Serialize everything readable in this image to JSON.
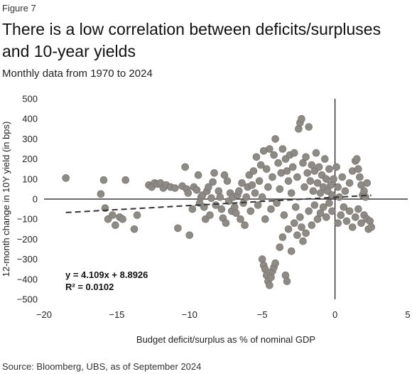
{
  "header": {
    "figure_label": "Figure 7",
    "title": "There is a low correlation between deficits/surpluses and 10-year yields",
    "subtitle": "Monthly data from 1970 to 2024"
  },
  "footer": {
    "source": "Source: Bloomberg, UBS, as of September 2024"
  },
  "colors": {
    "points": "#8e8b86",
    "point_stroke": "#6f6c67",
    "trend": "#333333",
    "axis": "#111111"
  },
  "chart_data": {
    "type": "scatter",
    "title": "There is a low correlation between deficits/surpluses and 10-year yields",
    "subtitle": "Monthly data from 1970 to 2024",
    "xlabel": "Budget deficit/surplus as % of nominal GDP",
    "ylabel": "12-month change in 10Y yield (in bps)",
    "xlim": [
      -20,
      5
    ],
    "ylim": [
      -500,
      500
    ],
    "x_ticks": [
      -20,
      -15,
      -10,
      -5,
      0,
      5
    ],
    "y_ticks": [
      500,
      400,
      300,
      200,
      100,
      0,
      -100,
      -200,
      -300,
      -400,
      -500
    ],
    "x_tick_labels": [
      "−20",
      "−15",
      "−10",
      "−5",
      "0",
      "5"
    ],
    "y_tick_labels": [
      "500",
      "400",
      "300",
      "200",
      "100",
      "0",
      "−100",
      "−200",
      "−300",
      "−400",
      "−500"
    ],
    "grid": false,
    "trendline": {
      "slope": 4.109,
      "intercept": 8.8926,
      "x_range": [
        -18.5,
        2.5
      ],
      "style": "dashed"
    },
    "annotations": {
      "equation": "y = 4.109x + 8.8926",
      "r_squared": "R² = 0.0102"
    },
    "series": [
      {
        "points": [
          [
            -18.5,
            105
          ],
          [
            -16.1,
            25
          ],
          [
            -15.9,
            95
          ],
          [
            -15.8,
            -45
          ],
          [
            -15.6,
            -100
          ],
          [
            -15.3,
            -80
          ],
          [
            -15.1,
            -130
          ],
          [
            -14.8,
            -90
          ],
          [
            -14.6,
            -100
          ],
          [
            -14.4,
            95
          ],
          [
            -13.8,
            -150
          ],
          [
            -13.6,
            -80
          ],
          [
            -12.8,
            70
          ],
          [
            -12.6,
            60
          ],
          [
            -12.4,
            80
          ],
          [
            -12.2,
            75
          ],
          [
            -12.0,
            80
          ],
          [
            -11.8,
            55
          ],
          [
            -11.6,
            70
          ],
          [
            -11.3,
            60
          ],
          [
            -11.0,
            55
          ],
          [
            -10.8,
            -145
          ],
          [
            -10.5,
            65
          ],
          [
            -10.3,
            160
          ],
          [
            -10.2,
            50
          ],
          [
            -10.1,
            30
          ],
          [
            -10.0,
            -180
          ],
          [
            -9.8,
            -50
          ],
          [
            -9.7,
            60
          ],
          [
            -9.5,
            45
          ],
          [
            -9.4,
            120
          ],
          [
            -9.3,
            -20
          ],
          [
            -9.2,
            10
          ],
          [
            -9.1,
            20
          ],
          [
            -9.0,
            -40
          ],
          [
            -8.9,
            -100
          ],
          [
            -8.8,
            40
          ],
          [
            -8.7,
            60
          ],
          [
            -8.6,
            -80
          ],
          [
            -8.5,
            5
          ],
          [
            -8.4,
            85
          ],
          [
            -8.3,
            130
          ],
          [
            -8.2,
            -30
          ],
          [
            -8.0,
            40
          ],
          [
            -7.9,
            10
          ],
          [
            -7.8,
            -50
          ],
          [
            -7.7,
            -95
          ],
          [
            -7.6,
            120
          ],
          [
            -7.5,
            -120
          ],
          [
            -7.4,
            90
          ],
          [
            -7.3,
            -10
          ],
          [
            -7.2,
            30
          ],
          [
            -7.1,
            -60
          ],
          [
            -7.0,
            10
          ],
          [
            -6.9,
            -40
          ],
          [
            -6.8,
            -70
          ],
          [
            -6.7,
            20
          ],
          [
            -6.6,
            40
          ],
          [
            -6.5,
            -100
          ],
          [
            -6.4,
            80
          ],
          [
            -6.3,
            -20
          ],
          [
            -6.2,
            -130
          ],
          [
            -6.1,
            10
          ],
          [
            -6.0,
            60
          ],
          [
            -5.9,
            120
          ],
          [
            -5.8,
            -60
          ],
          [
            -5.7,
            70
          ],
          [
            -5.6,
            140
          ],
          [
            -5.5,
            30
          ],
          [
            -5.4,
            210
          ],
          [
            -5.3,
            -30
          ],
          [
            -5.2,
            90
          ],
          [
            -5.1,
            170
          ],
          [
            -5.0,
            10
          ],
          [
            -4.9,
            240
          ],
          [
            -4.8,
            -100
          ],
          [
            -4.7,
            150
          ],
          [
            -4.6,
            60
          ],
          [
            -4.5,
            250
          ],
          [
            -4.4,
            -50
          ],
          [
            -4.3,
            110
          ],
          [
            -4.2,
            220
          ],
          [
            -4.1,
            300
          ],
          [
            -4.0,
            -20
          ],
          [
            -3.9,
            180
          ],
          [
            -3.8,
            50
          ],
          [
            -3.7,
            130
          ],
          [
            -3.6,
            250
          ],
          [
            -3.5,
            -80
          ],
          [
            -3.4,
            200
          ],
          [
            -3.3,
            140
          ],
          [
            -3.2,
            90
          ],
          [
            -3.1,
            220
          ],
          [
            -3.0,
            30
          ],
          [
            -2.9,
            160
          ],
          [
            -2.8,
            230
          ],
          [
            -2.7,
            -40
          ],
          [
            -2.6,
            110
          ],
          [
            -2.5,
            350
          ],
          [
            -2.4,
            380
          ],
          [
            -2.3,
            400
          ],
          [
            -2.2,
            180
          ],
          [
            -2.1,
            60
          ],
          [
            -2.0,
            210
          ],
          [
            -1.9,
            130
          ],
          [
            -1.8,
            360
          ],
          [
            -1.7,
            90
          ],
          [
            -1.6,
            170
          ],
          [
            -1.5,
            40
          ],
          [
            -1.4,
            140
          ],
          [
            -1.3,
            230
          ],
          [
            -1.2,
            80
          ],
          [
            -1.1,
            160
          ],
          [
            -1.0,
            30
          ],
          [
            -0.9,
            120
          ],
          [
            -0.8,
            60
          ],
          [
            -0.7,
            200
          ],
          [
            -0.6,
            100
          ],
          [
            -0.5,
            40
          ],
          [
            -0.4,
            150
          ],
          [
            -0.3,
            70
          ],
          [
            -0.2,
            20
          ],
          [
            -0.1,
            100
          ],
          [
            0.1,
            160
          ],
          [
            0.2,
            60
          ],
          [
            0.3,
            10
          ],
          [
            0.5,
            110
          ],
          [
            0.7,
            40
          ],
          [
            1.0,
            80
          ],
          [
            1.2,
            140
          ],
          [
            1.4,
            190
          ],
          [
            1.5,
            200
          ],
          [
            1.6,
            150
          ],
          [
            1.7,
            110
          ],
          [
            1.8,
            70
          ],
          [
            1.9,
            20
          ],
          [
            2.0,
            40
          ],
          [
            2.1,
            10
          ],
          [
            2.2,
            80
          ],
          [
            -5.0,
            -300
          ],
          [
            -4.9,
            -330
          ],
          [
            -4.8,
            -350
          ],
          [
            -4.7,
            -380
          ],
          [
            -4.6,
            -410
          ],
          [
            -4.5,
            -430
          ],
          [
            -4.4,
            -390
          ],
          [
            -4.3,
            -360
          ],
          [
            -4.2,
            -340
          ],
          [
            -4.1,
            -320
          ],
          [
            -3.8,
            -240
          ],
          [
            -3.6,
            -190
          ],
          [
            -3.4,
            -380
          ],
          [
            -3.3,
            -410
          ],
          [
            -3.2,
            -150
          ],
          [
            -3.0,
            -260
          ],
          [
            -2.8,
            -120
          ],
          [
            -2.6,
            -180
          ],
          [
            -2.4,
            -90
          ],
          [
            -2.3,
            -140
          ],
          [
            -2.2,
            -210
          ],
          [
            -2.0,
            -170
          ],
          [
            -1.8,
            -60
          ],
          [
            -1.6,
            -130
          ],
          [
            -1.4,
            -30
          ],
          [
            -1.2,
            -100
          ],
          [
            -1.0,
            -70
          ],
          [
            -0.8,
            -40
          ],
          [
            -0.6,
            -90
          ],
          [
            -0.4,
            -20
          ],
          [
            -0.2,
            -60
          ],
          [
            0.2,
            -120
          ],
          [
            0.4,
            -80
          ],
          [
            0.6,
            -40
          ],
          [
            0.8,
            -110
          ],
          [
            1.0,
            -60
          ],
          [
            1.2,
            -140
          ],
          [
            1.4,
            -90
          ],
          [
            1.6,
            -50
          ],
          [
            1.8,
            -120
          ],
          [
            2.0,
            -80
          ],
          [
            2.2,
            -100
          ],
          [
            2.3,
            -150
          ],
          [
            2.4,
            -110
          ],
          [
            2.5,
            -140
          ]
        ]
      }
    ]
  }
}
